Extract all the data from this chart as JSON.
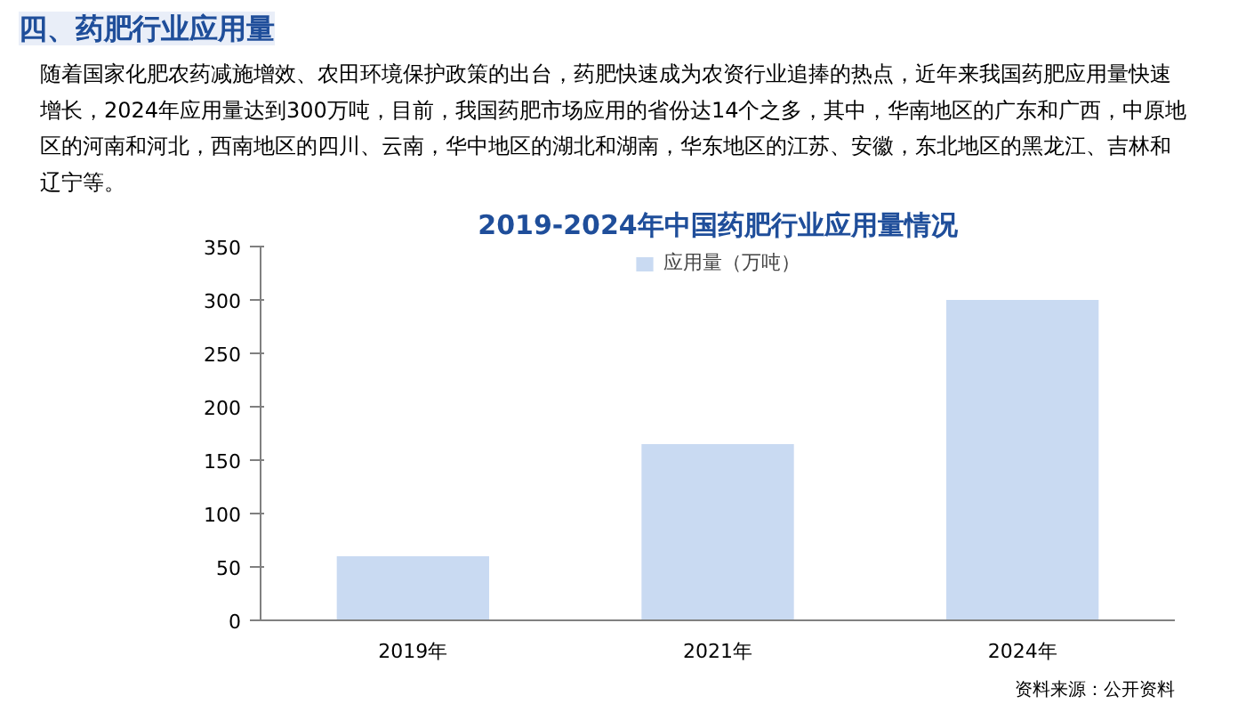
{
  "chart_data": {
    "type": "bar",
    "title": "2019-2024年中国药肥行业应用量情况",
    "annotations": [
      "四、药肥行业应用量",
      "随着国家化肥农药减施增效、农田环境保护政策的出台，药肥快速成为农资行业追捧的热点，近年来我国药肥应用量快速增长，2024年应用量达到300万吨，目前，我国药肥市场应用的省份达14个之多，其中，华南地区的广东和广西，中原地区的河南和河北，西南地区的四川、云南，华中地区的湖北和湖南，华东地区的江苏、安徽，东北地区的黑龙江、吉林和辽宁等。",
      "资料来源：公开资料"
    ],
    "categories": [
      "2019年",
      "2021年",
      "2024年"
    ],
    "series": [
      {
        "name": "应用量（万吨）",
        "color": "#c9daf2",
        "values": [
          60,
          165,
          300
        ]
      }
    ],
    "ylim": [
      0,
      350
    ],
    "yticks": [
      0,
      50,
      100,
      150,
      200,
      250,
      300,
      350
    ],
    "grid": false,
    "legend": "top"
  }
}
